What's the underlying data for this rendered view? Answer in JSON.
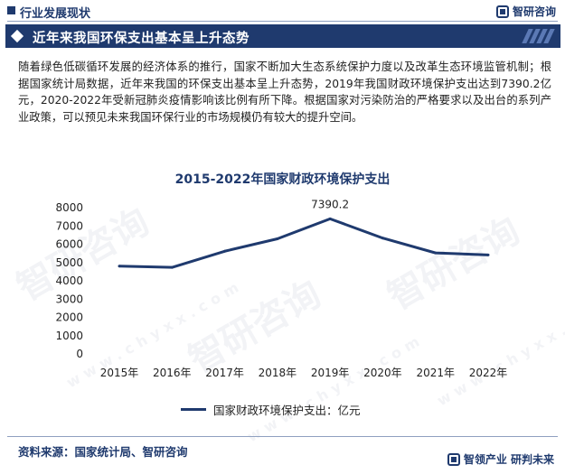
{
  "header": {
    "category": "行业发展现状",
    "brand": "智研咨询"
  },
  "banner": {
    "title": "近年来我国环保支出基本呈上升态势"
  },
  "paragraph": "随着绿色低碳循环发展的经济体系的推行，国家不断加大生态系统保护力度以及改革生态环境监管机制；根据国家统计局数据，近年来我国的环保支出基本呈上升态势，2019年我国财政环境保护支出达到7390.2亿元，2020-2022年受新冠肺炎疫情影响该比例有所下降。根据国家对污染防治的严格要求以及出台的系列产业政策，可以预见未来我国环保行业的市场规模仍有较大的提升空间。",
  "watermark": {
    "text": "智研咨询",
    "sub": "www.chyxx.com"
  },
  "chart_data": {
    "type": "line",
    "title": "2015-2022年国家财政环境保护支出",
    "categories": [
      "2015年",
      "2016年",
      "2017年",
      "2018年",
      "2019年",
      "2020年",
      "2021年",
      "2022年"
    ],
    "series": [
      {
        "name": "国家财政环境保护支出：亿元",
        "values": [
          4803,
          4734,
          5617,
          6297,
          7390.2,
          6334,
          5525,
          5413
        ],
        "color": "#1f3a6e"
      }
    ],
    "data_labels": [
      {
        "category": "2019年",
        "text": "7390.2"
      }
    ],
    "ylim": [
      0,
      8000
    ],
    "yticks": [
      0,
      1000,
      2000,
      3000,
      4000,
      5000,
      6000,
      7000,
      8000
    ],
    "grid": false,
    "legend": "bottom"
  },
  "footer": {
    "source": "资料来源：国家统计局、智研咨询",
    "slogan": "智领产业 研判未来"
  }
}
